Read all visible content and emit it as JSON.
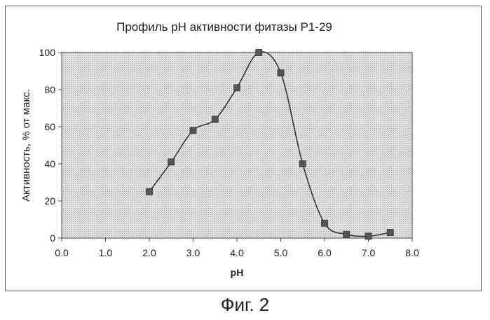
{
  "figure_caption": "Фиг. 2",
  "chart_data": {
    "type": "line",
    "title": "Профиль pH активности фитазы P1-29",
    "xlabel": "pH",
    "ylabel": "Активность, % от макс.",
    "xlim": [
      0.0,
      8.0
    ],
    "ylim": [
      0,
      100
    ],
    "x_ticks": [
      "0.0",
      "1.0",
      "2.0",
      "3.0",
      "4.0",
      "5.0",
      "6.0",
      "7.0",
      "8.0"
    ],
    "y_ticks": [
      "0",
      "20",
      "40",
      "60",
      "80",
      "100"
    ],
    "grid": false,
    "legend": "none",
    "smoothed": true,
    "marker": "square",
    "colors": {
      "marker": "#555555",
      "line": "#333333",
      "plot_background": "#d9d9d9"
    },
    "series": [
      {
        "x": [
          2.0,
          2.5,
          3.0,
          3.5,
          4.0,
          4.5,
          5.0,
          5.5,
          6.0,
          6.5,
          7.0,
          7.5
        ],
        "y": [
          25,
          41,
          58,
          64,
          81,
          100,
          89,
          40,
          8,
          2,
          1,
          3
        ]
      }
    ]
  }
}
